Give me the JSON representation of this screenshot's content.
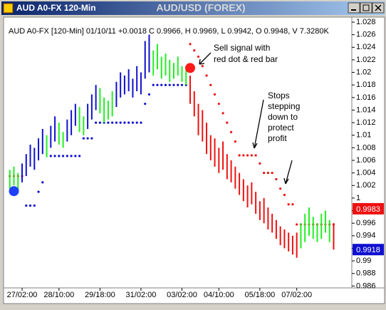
{
  "window_title": "AUD A0-FX 120-Min",
  "chart_data": {
    "type": "ohlc",
    "title": "AUD/USD (FOREX)",
    "info": "AUD A0-FX [120-Min] 01/10/11 +0.0018 C 0.9966, H 0.9969, L 0.9942, O 0.9948, V 7.3280K",
    "xlim": [
      -1,
      81
    ],
    "xticks": [
      {
        "value": 3,
        "label": "27/02:00"
      },
      {
        "value": 12,
        "label": "28/10:00"
      },
      {
        "value": 22,
        "label": "29/18:00"
      },
      {
        "value": 32,
        "label": "31/02:00"
      },
      {
        "value": 42,
        "label": "03/02:00"
      },
      {
        "value": 51,
        "label": "04/10:00"
      },
      {
        "value": 61,
        "label": "05/18:00"
      },
      {
        "value": 70,
        "label": "07/02:00"
      }
    ],
    "ylim": [
      0.9857,
      1.0288
    ],
    "yticks": [
      1.028,
      1.026,
      1.024,
      1.022,
      1.02,
      1.018,
      1.016,
      1.014,
      1.012,
      1.01,
      1.008,
      1.006,
      1.004,
      1.002,
      1,
      0.998,
      0.996,
      0.994,
      0.992,
      0.99,
      0.988,
      0.986
    ],
    "series": [
      {
        "color": "#1010d0",
        "x": [
          3,
          4,
          5,
          6,
          7,
          8,
          10,
          11,
          14,
          15,
          16,
          19,
          20,
          21,
          26,
          27,
          28,
          29,
          30,
          31,
          32,
          33,
          34
        ],
        "high": [
          1.0055,
          1.007,
          1.0085,
          1.008,
          1.0095,
          1.011,
          1.0115,
          1.013,
          1.0125,
          1.014,
          1.015,
          1.015,
          1.0165,
          1.018,
          1.0185,
          1.02,
          1.0195,
          1.0205,
          1.019,
          1.021,
          1.02,
          1.025,
          1.026
        ],
        "low": [
          1.0025,
          1.0035,
          1.005,
          1.0045,
          1.006,
          1.007,
          1.008,
          1.009,
          1.009,
          1.01,
          1.0115,
          1.011,
          1.0125,
          1.014,
          1.0145,
          1.016,
          1.0165,
          1.017,
          1.016,
          1.017,
          1.0165,
          1.019,
          1.02
        ]
      },
      {
        "color": "#22ee22",
        "x": [
          0,
          1,
          2,
          9,
          12,
          13,
          17,
          18,
          22,
          23,
          24,
          25,
          35,
          36,
          37,
          38,
          39,
          40,
          41,
          42,
          43,
          71,
          72,
          73,
          74,
          75,
          76,
          77,
          78
        ],
        "high": [
          1.0045,
          1.005,
          1.004,
          1.01,
          1.012,
          1.0105,
          1.0145,
          1.013,
          1.0175,
          1.016,
          1.0155,
          1.017,
          1.0235,
          1.0245,
          1.0225,
          1.023,
          1.022,
          1.0215,
          1.0225,
          1.021,
          1.0205,
          0.996,
          0.9975,
          0.9985,
          0.997,
          0.996,
          0.9975,
          0.998,
          0.9965
        ],
        "low": [
          1.0015,
          1.002,
          1.001,
          1.0065,
          1.0085,
          1.008,
          1.0105,
          1.01,
          1.0135,
          1.012,
          1.0125,
          1.013,
          1.0195,
          1.0205,
          1.019,
          1.0195,
          1.0185,
          1.019,
          1.0195,
          1.0185,
          1.018,
          0.992,
          0.993,
          0.994,
          0.9935,
          0.993,
          0.9935,
          0.9945,
          0.993
        ]
      },
      {
        "color": "#ee1111",
        "x": [
          44,
          45,
          46,
          47,
          48,
          49,
          50,
          51,
          52,
          53,
          54,
          55,
          56,
          57,
          58,
          59,
          60,
          61,
          62,
          63,
          64,
          65,
          66,
          67,
          68,
          69,
          70,
          79
        ],
        "high": [
          1.0195,
          1.017,
          1.015,
          1.014,
          1.012,
          1.01,
          1.0095,
          1.008,
          1.009,
          1.007,
          1.006,
          1.005,
          1.004,
          1.003,
          1.002,
          1.0025,
          1.001,
          0.9995,
          1.0,
          0.9985,
          0.9975,
          0.9965,
          0.9955,
          0.995,
          0.9945,
          0.994,
          0.9945,
          0.996
        ],
        "low": [
          1.015,
          1.013,
          1.01,
          1.009,
          1.007,
          1.006,
          1.005,
          1.004,
          1.0045,
          1.003,
          1.0025,
          1.0015,
          1.0005,
          0.9995,
          0.9985,
          0.999,
          0.9975,
          0.9965,
          0.996,
          0.995,
          0.9945,
          0.9935,
          0.9925,
          0.992,
          0.9915,
          0.991,
          0.9905,
          0.9918
        ]
      }
    ],
    "stops": [
      {
        "color": "#1010d0",
        "x": [
          4,
          5,
          6,
          7,
          8,
          10,
          11,
          12,
          13,
          14,
          15,
          16,
          17,
          18,
          19,
          20,
          21,
          22,
          23,
          24,
          25,
          26,
          27,
          28,
          29,
          30,
          31,
          32,
          33,
          34,
          35,
          36,
          37,
          38,
          39,
          40,
          41,
          42,
          43
        ],
        "values": [
          0.9988,
          0.9988,
          0.9988,
          1.001,
          1.0025,
          1.0067,
          1.0067,
          1.0067,
          1.0067,
          1.0067,
          1.0067,
          1.0067,
          1.0067,
          1.0095,
          1.0095,
          1.0095,
          1.012,
          1.012,
          1.012,
          1.012,
          1.012,
          1.012,
          1.012,
          1.012,
          1.012,
          1.012,
          1.012,
          1.012,
          1.015,
          1.0165,
          1.018,
          1.018,
          1.018,
          1.018,
          1.018,
          1.018,
          1.018,
          1.018,
          1.018
        ]
      },
      {
        "color": "#ee1111",
        "x": [
          0,
          1,
          2,
          3,
          44,
          45,
          46,
          47,
          48,
          49,
          50,
          51,
          52,
          53,
          54,
          55,
          56,
          57,
          58,
          59,
          60,
          61,
          62,
          63,
          64,
          65,
          66,
          67,
          68,
          69,
          70,
          71,
          72,
          73,
          74,
          75,
          76,
          77,
          78,
          79
        ],
        "values": [
          1.0035,
          1.0035,
          1.0035,
          1.0035,
          1.0245,
          1.0235,
          1.0225,
          1.021,
          1.0195,
          1.018,
          1.0165,
          1.015,
          1.0135,
          1.012,
          1.0105,
          1.009,
          1.0068,
          1.0068,
          1.0068,
          1.0068,
          1.0068,
          1.0055,
          1.004,
          1.004,
          1.004,
          1.003,
          1.0015,
          1.0005,
          0.999,
          0.999,
          0.9958,
          0.9958,
          0.9958,
          0.9958,
          0.9958,
          0.9958,
          0.9958,
          0.9958,
          0.9958,
          0.9958
        ]
      }
    ],
    "signals": [
      {
        "color": "#1f3fff",
        "x": 1,
        "value": 1.0011
      },
      {
        "color": "#ff1a1a",
        "x": 44,
        "value": 1.0207
      }
    ],
    "price_markers": [
      {
        "color": "#ee1111",
        "value": 0.9983
      },
      {
        "color": "#1010d0",
        "value": 0.9918
      }
    ],
    "annotations": [
      {
        "lines": [
          "Sell signal with",
          "red dot & red bar"
        ]
      },
      {
        "lines": [
          "Stops",
          "stepping",
          "down to",
          "protect",
          "profit"
        ]
      }
    ]
  }
}
